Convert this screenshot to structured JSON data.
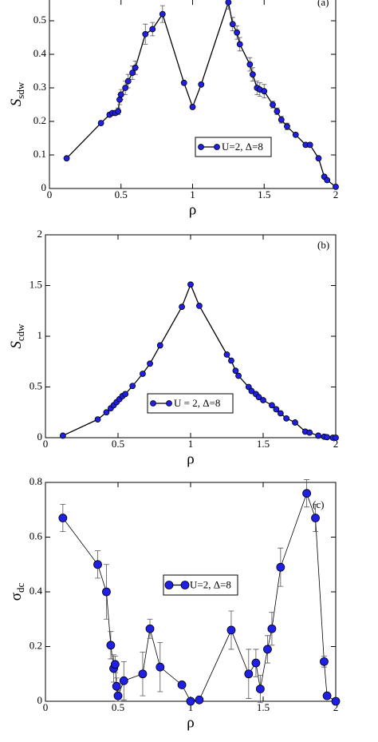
{
  "chart_data": [
    {
      "type": "line",
      "panel_label": "(a)",
      "xlabel": "ρ",
      "ylabel": "S",
      "ylabel_sub": "sdw",
      "xlim": [
        0,
        2
      ],
      "ylim": [
        0,
        0.6
      ],
      "xticks": [
        0,
        0.5,
        1,
        1.5,
        2
      ],
      "yticks": [
        0,
        0.1,
        0.2,
        0.3,
        0.4,
        0.5
      ],
      "x": [
        0.12,
        0.36,
        0.42,
        0.44,
        0.46,
        0.48,
        0.49,
        0.5,
        0.53,
        0.55,
        0.58,
        0.6,
        0.67,
        0.72,
        0.79,
        0.94,
        1.0,
        1.06,
        1.25,
        1.28,
        1.31,
        1.33,
        1.4,
        1.42,
        1.45,
        1.47,
        1.5,
        1.56,
        1.59,
        1.62,
        1.66,
        1.72,
        1.79,
        1.82,
        1.88,
        1.92,
        1.94,
        2.0
      ],
      "series": [
        {
          "name": "U=2, Δ=8",
          "color": "#1f1fe6",
          "values": [
            0.09,
            0.195,
            0.22,
            0.225,
            0.225,
            0.23,
            0.265,
            0.28,
            0.3,
            0.32,
            0.345,
            0.36,
            0.46,
            0.475,
            0.52,
            0.315,
            0.243,
            0.31,
            0.555,
            0.49,
            0.465,
            0.43,
            0.37,
            0.34,
            0.3,
            0.295,
            0.29,
            0.25,
            0.23,
            0.205,
            0.185,
            0.16,
            0.13,
            0.13,
            0.09,
            0.035,
            0.025,
            0.005
          ],
          "errors": [
            0.005,
            0.005,
            0.005,
            0.005,
            0.005,
            0.01,
            0.015,
            0.015,
            0.02,
            0.02,
            0.02,
            0.02,
            0.03,
            0.02,
            0.025,
            0.005,
            0.005,
            0.005,
            0.02,
            0.02,
            0.02,
            0.02,
            0.02,
            0.02,
            0.02,
            0.02,
            0.02,
            0.01,
            0.01,
            0.01,
            0.01,
            0.005,
            0.005,
            0.005,
            0.005,
            0.005,
            0.005,
            0.005
          ]
        }
      ]
    },
    {
      "type": "line",
      "panel_label": "(b)",
      "xlabel": "ρ",
      "ylabel": "S",
      "ylabel_sub": "cdw",
      "xlim": [
        0,
        2
      ],
      "ylim": [
        0,
        2
      ],
      "xticks": [
        0,
        0.5,
        1,
        1.5,
        2
      ],
      "yticks": [
        0,
        0.5,
        1,
        1.5,
        2
      ],
      "x": [
        0.12,
        0.36,
        0.42,
        0.45,
        0.47,
        0.49,
        0.51,
        0.53,
        0.55,
        0.6,
        0.67,
        0.72,
        0.79,
        0.94,
        1.0,
        1.06,
        1.25,
        1.28,
        1.31,
        1.33,
        1.4,
        1.42,
        1.45,
        1.47,
        1.5,
        1.56,
        1.59,
        1.62,
        1.66,
        1.72,
        1.79,
        1.82,
        1.88,
        1.92,
        1.94,
        1.98,
        2.0
      ],
      "series": [
        {
          "name": "U = 2, Δ=8",
          "color": "#1f1fe6",
          "values": [
            0.02,
            0.18,
            0.25,
            0.29,
            0.32,
            0.35,
            0.38,
            0.41,
            0.43,
            0.51,
            0.63,
            0.73,
            0.91,
            1.29,
            1.51,
            1.3,
            0.82,
            0.76,
            0.66,
            0.61,
            0.5,
            0.46,
            0.43,
            0.4,
            0.37,
            0.32,
            0.28,
            0.24,
            0.19,
            0.15,
            0.06,
            0.05,
            0.02,
            0.01,
            0.005,
            0.0,
            0.0
          ]
        }
      ]
    },
    {
      "type": "line",
      "panel_label": "(c)",
      "xlabel": "ρ",
      "ylabel": "σ",
      "ylabel_sub": "dc",
      "xlim": [
        0,
        2
      ],
      "ylim": [
        0,
        0.8
      ],
      "xticks": [
        0,
        0.5,
        1,
        1.5,
        2
      ],
      "yticks": [
        0,
        0.2,
        0.4,
        0.6,
        0.8
      ],
      "x": [
        0.12,
        0.36,
        0.42,
        0.45,
        0.47,
        0.48,
        0.49,
        0.5,
        0.54,
        0.67,
        0.72,
        0.79,
        0.94,
        1.0,
        1.06,
        1.28,
        1.4,
        1.45,
        1.48,
        1.53,
        1.56,
        1.62,
        1.8,
        1.86,
        1.92,
        1.94,
        2.0
      ],
      "series": [
        {
          "name": "U=2, Δ=8",
          "color": "#1f1fe6",
          "values": [
            0.67,
            0.5,
            0.4,
            0.205,
            0.12,
            0.135,
            0.055,
            0.02,
            0.075,
            0.1,
            0.265,
            0.125,
            0.06,
            0.0,
            0.005,
            0.26,
            0.1,
            0.14,
            0.045,
            0.19,
            0.265,
            0.49,
            0.76,
            0.67,
            0.145,
            0.02,
            0.0
          ],
          "errors": [
            0.05,
            0.05,
            0.1,
            0.05,
            0.05,
            0.03,
            0.03,
            0.02,
            0.07,
            0.08,
            0.035,
            0.09,
            0.01,
            0.005,
            0.01,
            0.07,
            0.09,
            0.05,
            0.05,
            0.05,
            0.06,
            0.07,
            0.05,
            0.05,
            0.02,
            0.01,
            0.005
          ]
        }
      ]
    }
  ]
}
